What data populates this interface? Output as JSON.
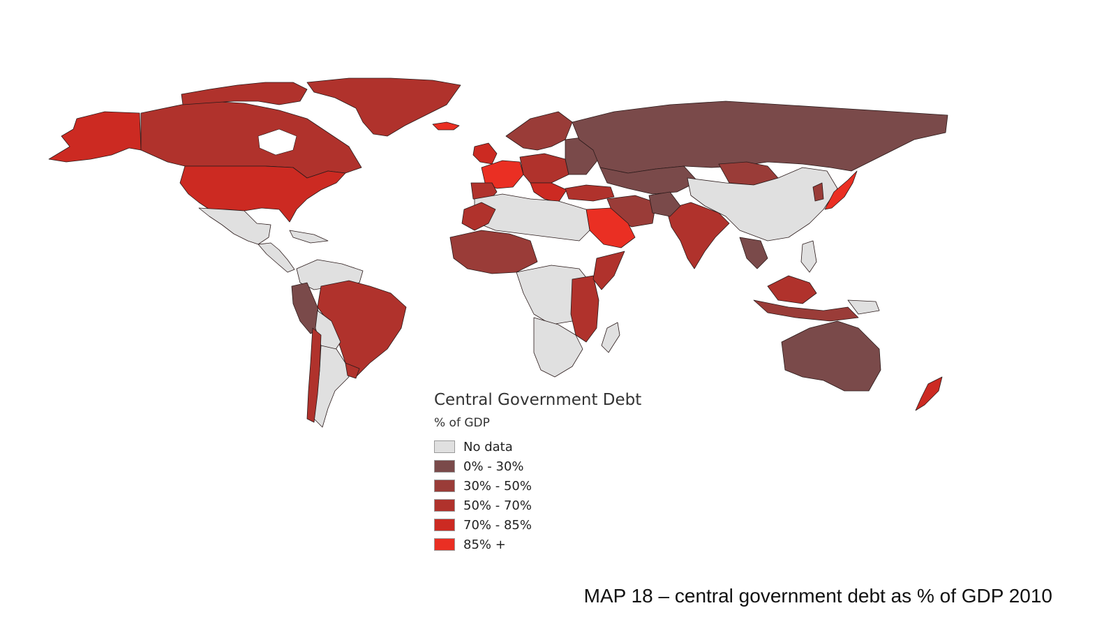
{
  "legend": {
    "title": "Central Government Debt",
    "subtitle": "% of GDP",
    "classes": [
      {
        "label": "No data",
        "color": "#e0e0e0"
      },
      {
        "label": "0% - 30%",
        "color": "#7a4a4a"
      },
      {
        "label": "30% - 50%",
        "color": "#9a3c38"
      },
      {
        "label": "50% - 70%",
        "color": "#b0322c"
      },
      {
        "label": "70% - 85%",
        "color": "#cc2a22"
      },
      {
        "label": "85% +",
        "color": "#ea2f23"
      }
    ]
  },
  "caption": "MAP 18 – central government debt as % of GDP 2010"
}
